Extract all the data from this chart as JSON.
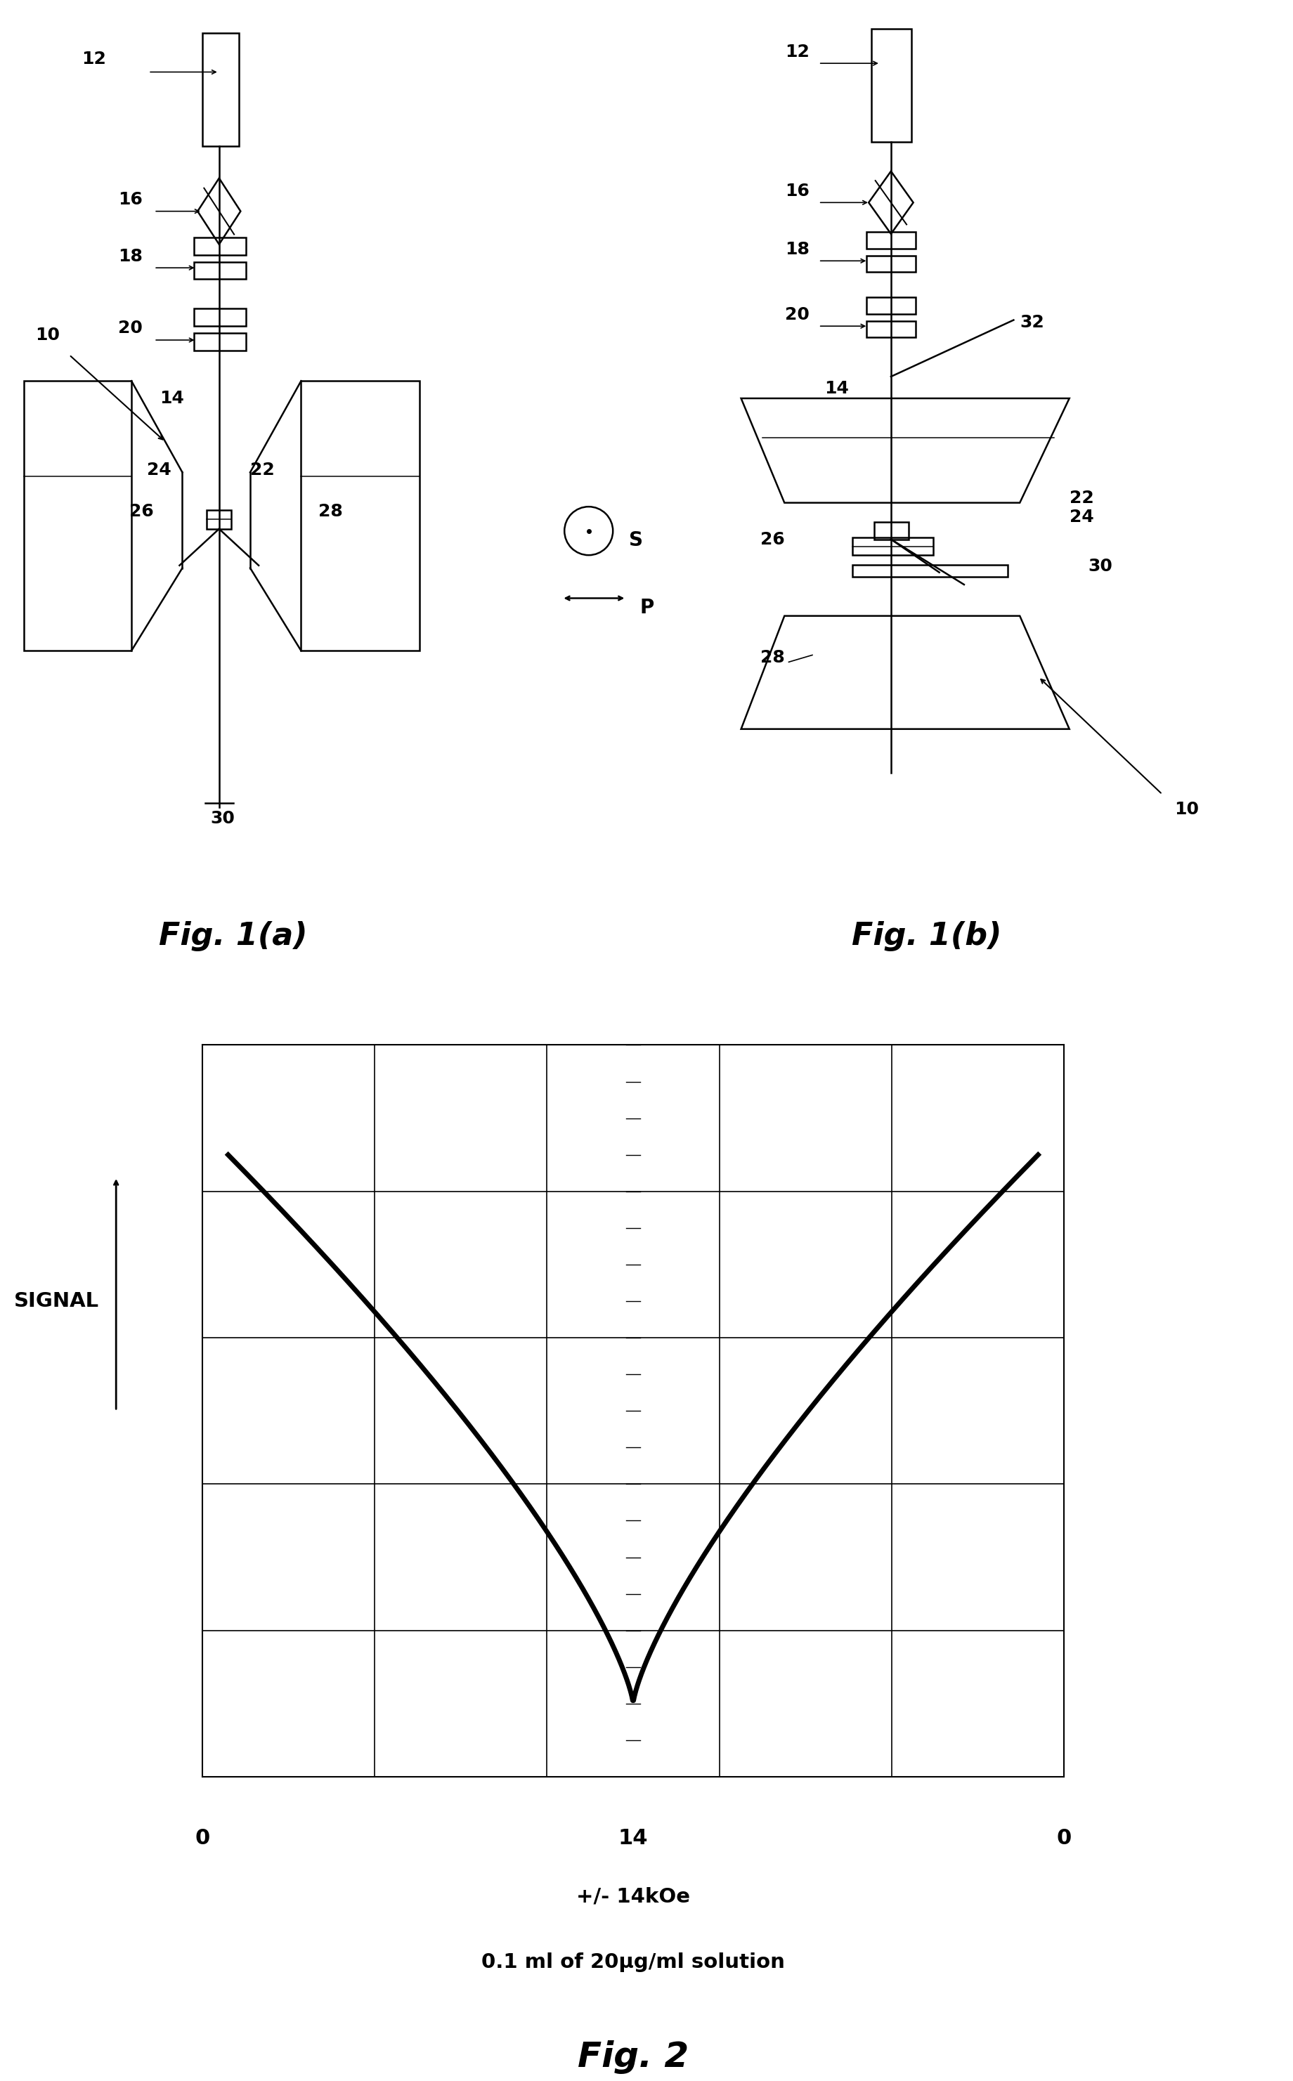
{
  "fig_width": 19.16,
  "fig_height": 28.15,
  "bg_color": "#ffffff",
  "line_color": "#000000",
  "fig2_xlabel_line1": "+/- 14kOe",
  "fig2_xlabel_line2": "0.1 ml of 20μg/ml solution",
  "fig2_ylabel": "SIGNAL",
  "fig2_title": "Fig. 2",
  "fig1a_title": "Fig. 1(a)",
  "fig1b_title": "Fig. 1(b)"
}
